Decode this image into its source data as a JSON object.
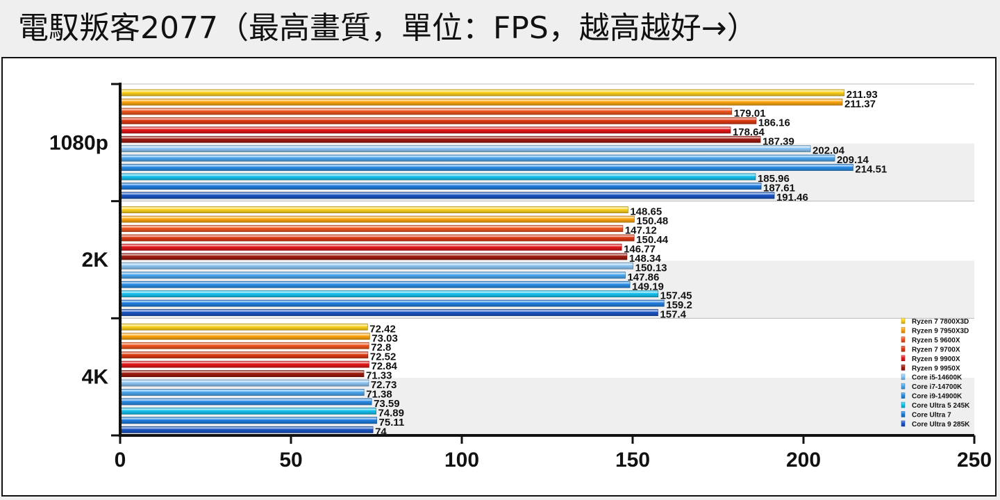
{
  "title": "電馭叛客2077（最高畫質，單位：FPS，越高越好→）",
  "colors": {
    "Ryzen 7 7800X3D": "#ffd21f",
    "Ryzen 9 7950X3D": "#ffa70f",
    "Ryzen 5 9600X": "#f0561f",
    "Ryzen 7 9700X": "#df3a14",
    "Ryzen 9 9900X": "#e5181a",
    "Ryzen 9 9950X": "#a01b10",
    "Core i5-14600K": "#8fc7f5",
    "Core i7-14700K": "#4da8ef",
    "Core i9-14900K": "#2a8de6",
    "Core Ultra 5 245K": "#16c3f0",
    "Core Ultra 7": "#1f7ee0",
    "Core Ultra 9 285K": "#1a55c4"
  },
  "chart_data": {
    "type": "bar",
    "orientation": "horizontal",
    "title": "電馭叛客2077（最高畫質，單位：FPS，越高越好→）",
    "categories": [
      "1080p",
      "2K",
      "4K"
    ],
    "xlim": [
      0,
      250
    ],
    "xticks": [
      "0",
      "50",
      "100",
      "150",
      "200",
      "250"
    ],
    "legend": "bottom-right",
    "series": [
      {
        "name": "Ryzen 7 7800X3D",
        "values": [
          211.93,
          148.65,
          72.42
        ]
      },
      {
        "name": "Ryzen 9 7950X3D",
        "values": [
          211.37,
          150.48,
          73.03
        ]
      },
      {
        "name": "Ryzen 5 9600X",
        "values": [
          179.01,
          147.12,
          72.8
        ]
      },
      {
        "name": "Ryzen 7 9700X",
        "values": [
          186.16,
          150.44,
          72.52
        ]
      },
      {
        "name": "Ryzen 9 9900X",
        "values": [
          178.64,
          146.77,
          72.84
        ]
      },
      {
        "name": "Ryzen 9 9950X",
        "values": [
          187.39,
          148.34,
          71.33
        ]
      },
      {
        "name": "Core i5-14600K",
        "values": [
          202.04,
          150.13,
          72.73
        ]
      },
      {
        "name": "Core i7-14700K",
        "values": [
          209.14,
          147.86,
          71.38
        ]
      },
      {
        "name": "Core i9-14900K",
        "values": [
          214.51,
          149.19,
          73.59
        ]
      },
      {
        "name": "Core Ultra 5 245K",
        "values": [
          185.96,
          157.45,
          74.89
        ]
      },
      {
        "name": "Core Ultra 7",
        "values": [
          187.61,
          159.2,
          75.11
        ]
      },
      {
        "name": "Core Ultra 9 285K",
        "values": [
          191.46,
          157.4,
          74
        ]
      }
    ]
  }
}
